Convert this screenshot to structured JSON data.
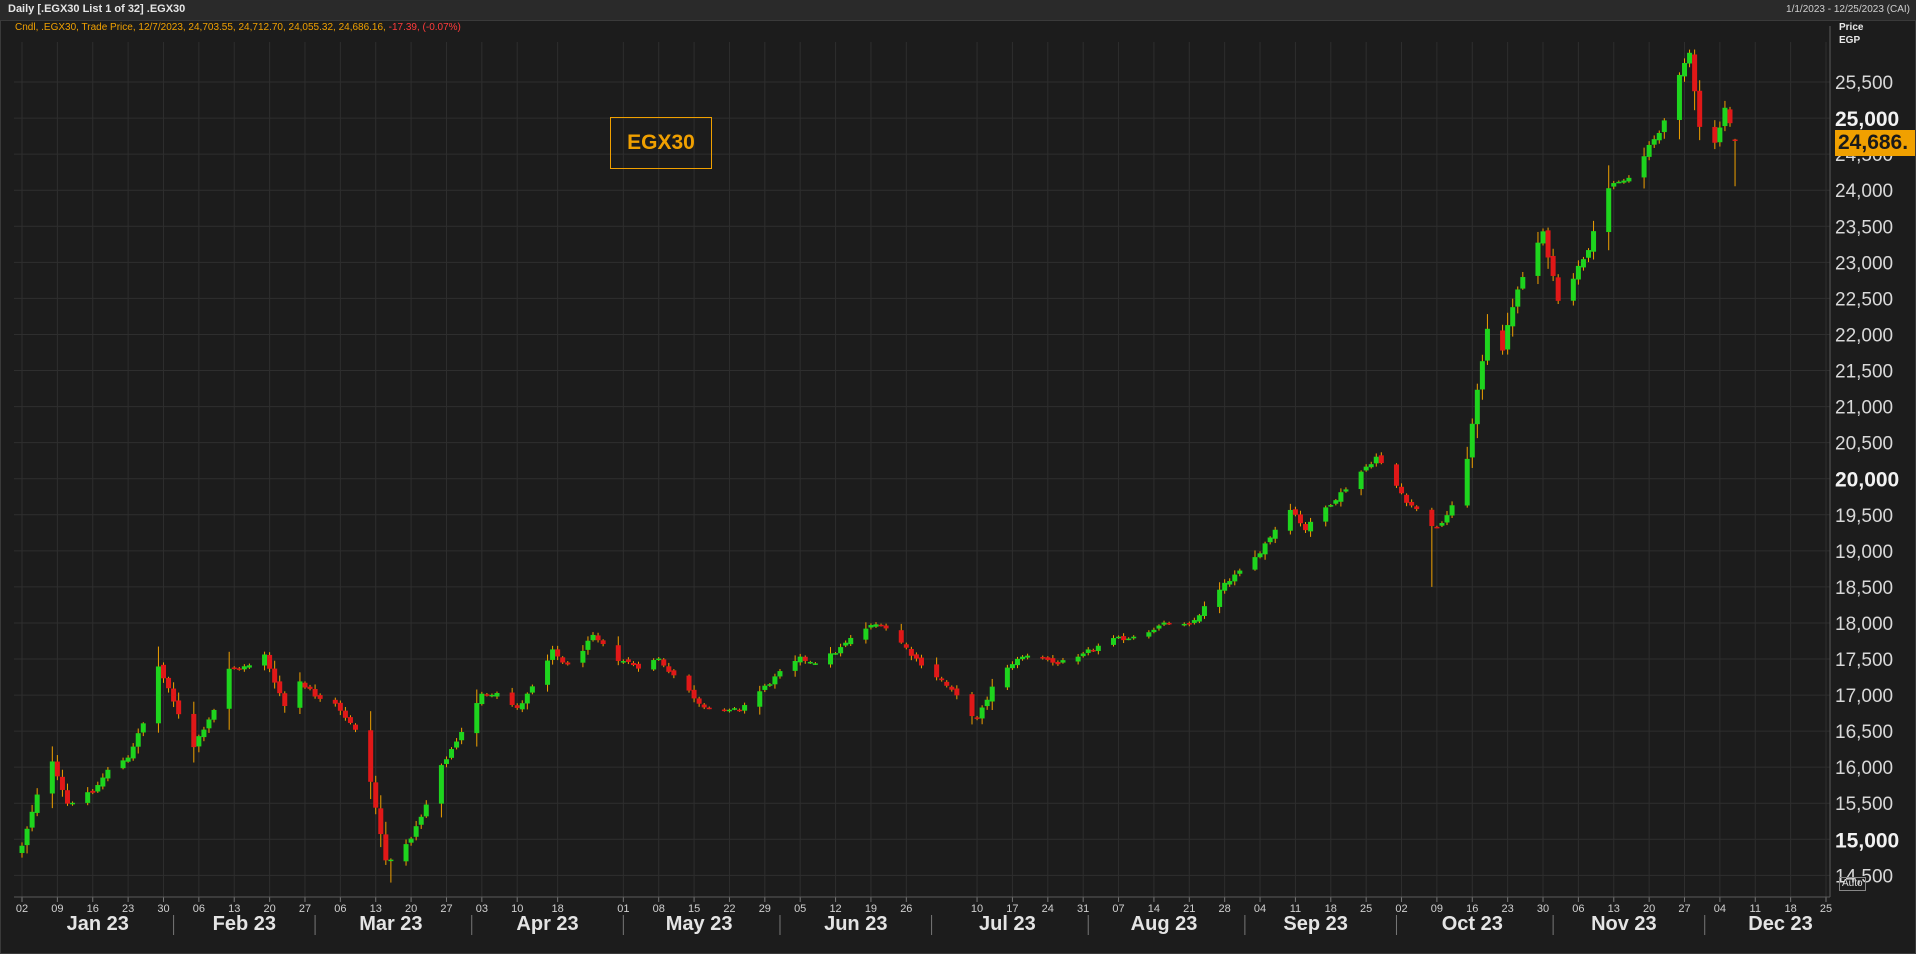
{
  "window": {
    "title": "Daily [.EGX30 List 1 of 32] .EGX30",
    "date_range": "1/1/2023 - 12/25/2023 (CAI)"
  },
  "legend": {
    "main": "Cndl, .EGX30, Trade Price, 12/7/2023, 24,703.55, 24,712.70, 24,055.32, 24,686.16,",
    "change": " -17.39, (-0.07%)"
  },
  "price_header": {
    "line1": "Price",
    "line2": "EGP"
  },
  "last_price_label": "24,686.",
  "annotation": "EGX30",
  "auto_label": "Auto",
  "colors": {
    "up": "#1ed41e",
    "down": "#e01818",
    "accent": "#f0a000",
    "grid": "#2e2e2e",
    "background": "#1c1c1c"
  },
  "chart_data": {
    "type": "candlestick",
    "instrument": ".EGX30",
    "currency": "EGP",
    "ylim": [
      14200,
      26000
    ],
    "ytick_labels": [
      "14,500",
      "15,000",
      "15,500",
      "16,000",
      "16,500",
      "17,000",
      "17,500",
      "18,000",
      "18,500",
      "19,000",
      "19,500",
      "20,000",
      "20,500",
      "21,000",
      "21,500",
      "22,000",
      "22,500",
      "23,000",
      "23,500",
      "24,000",
      "24,500",
      "25,000",
      "25,500"
    ],
    "ytick_values": [
      14500,
      15000,
      15500,
      16000,
      16500,
      17000,
      17500,
      18000,
      18500,
      19000,
      19500,
      20000,
      20500,
      21000,
      21500,
      22000,
      22500,
      23000,
      23500,
      24000,
      24500,
      25000,
      25500
    ],
    "ytick_major": [
      15000,
      20000,
      25000
    ],
    "xlim": [
      "2023-01-02",
      "2023-12-25"
    ],
    "day_ticks": [
      {
        "label": "02",
        "date": "2023-01-02"
      },
      {
        "label": "09",
        "date": "2023-01-09"
      },
      {
        "label": "16",
        "date": "2023-01-16"
      },
      {
        "label": "23",
        "date": "2023-01-23"
      },
      {
        "label": "30",
        "date": "2023-01-30"
      },
      {
        "label": "06",
        "date": "2023-02-06"
      },
      {
        "label": "13",
        "date": "2023-02-13"
      },
      {
        "label": "20",
        "date": "2023-02-20"
      },
      {
        "label": "27",
        "date": "2023-02-27"
      },
      {
        "label": "06",
        "date": "2023-03-06"
      },
      {
        "label": "13",
        "date": "2023-03-13"
      },
      {
        "label": "20",
        "date": "2023-03-20"
      },
      {
        "label": "27",
        "date": "2023-03-27"
      },
      {
        "label": "03",
        "date": "2023-04-03"
      },
      {
        "label": "10",
        "date": "2023-04-10"
      },
      {
        "label": "18",
        "date": "2023-04-18"
      },
      {
        "label": "01",
        "date": "2023-05-01"
      },
      {
        "label": "08",
        "date": "2023-05-08"
      },
      {
        "label": "15",
        "date": "2023-05-15"
      },
      {
        "label": "22",
        "date": "2023-05-22"
      },
      {
        "label": "29",
        "date": "2023-05-29"
      },
      {
        "label": "05",
        "date": "2023-06-05"
      },
      {
        "label": "12",
        "date": "2023-06-12"
      },
      {
        "label": "19",
        "date": "2023-06-19"
      },
      {
        "label": "26",
        "date": "2023-06-26"
      },
      {
        "label": "10",
        "date": "2023-07-10"
      },
      {
        "label": "17",
        "date": "2023-07-17"
      },
      {
        "label": "24",
        "date": "2023-07-24"
      },
      {
        "label": "31",
        "date": "2023-07-31"
      },
      {
        "label": "07",
        "date": "2023-08-07"
      },
      {
        "label": "14",
        "date": "2023-08-14"
      },
      {
        "label": "21",
        "date": "2023-08-21"
      },
      {
        "label": "28",
        "date": "2023-08-28"
      },
      {
        "label": "04",
        "date": "2023-09-04"
      },
      {
        "label": "11",
        "date": "2023-09-11"
      },
      {
        "label": "18",
        "date": "2023-09-18"
      },
      {
        "label": "25",
        "date": "2023-09-25"
      },
      {
        "label": "02",
        "date": "2023-10-02"
      },
      {
        "label": "09",
        "date": "2023-10-09"
      },
      {
        "label": "16",
        "date": "2023-10-16"
      },
      {
        "label": "23",
        "date": "2023-10-23"
      },
      {
        "label": "30",
        "date": "2023-10-30"
      },
      {
        "label": "06",
        "date": "2023-11-06"
      },
      {
        "label": "13",
        "date": "2023-11-13"
      },
      {
        "label": "20",
        "date": "2023-11-20"
      },
      {
        "label": "27",
        "date": "2023-11-27"
      },
      {
        "label": "04",
        "date": "2023-12-04"
      },
      {
        "label": "11",
        "date": "2023-12-11"
      },
      {
        "label": "18",
        "date": "2023-12-18"
      },
      {
        "label": "25",
        "date": "2023-12-25"
      }
    ],
    "month_labels": [
      {
        "label": "Jan 23",
        "date": "2023-01-17"
      },
      {
        "label": "Feb 23",
        "date": "2023-02-15"
      },
      {
        "label": "Mar 23",
        "date": "2023-03-16"
      },
      {
        "label": "Apr 23",
        "date": "2023-04-16"
      },
      {
        "label": "May 23",
        "date": "2023-05-16"
      },
      {
        "label": "Jun 23",
        "date": "2023-06-16"
      },
      {
        "label": "Jul 23",
        "date": "2023-07-16"
      },
      {
        "label": "Aug 23",
        "date": "2023-08-16"
      },
      {
        "label": "Sep 23",
        "date": "2023-09-15"
      },
      {
        "label": "Oct 23",
        "date": "2023-10-16"
      },
      {
        "label": "Nov 23",
        "date": "2023-11-15"
      },
      {
        "label": "Dec 23",
        "date": "2023-12-16"
      }
    ],
    "month_separators": [
      "2023-02-01",
      "2023-03-01",
      "2023-04-01",
      "2023-05-01",
      "2023-06-01",
      "2023-07-01",
      "2023-08-01",
      "2023-09-01",
      "2023-10-01",
      "2023-11-01",
      "2023-12-01"
    ],
    "close_anchors": [
      [
        "2023-01-02",
        14900
      ],
      [
        "2023-01-05",
        15600
      ],
      [
        "2023-01-08",
        16100
      ],
      [
        "2023-01-11",
        15500
      ],
      [
        "2023-01-16",
        15650
      ],
      [
        "2023-01-19",
        15950
      ],
      [
        "2023-01-23",
        16150
      ],
      [
        "2023-01-26",
        16600
      ],
      [
        "2023-01-29",
        17400
      ],
      [
        "2023-02-01",
        16900
      ],
      [
        "2023-02-05",
        16300
      ],
      [
        "2023-02-09",
        16800
      ],
      [
        "2023-02-12",
        17350
      ],
      [
        "2023-02-16",
        17400
      ],
      [
        "2023-02-19",
        17550
      ],
      [
        "2023-02-23",
        16850
      ],
      [
        "2023-02-26",
        17200
      ],
      [
        "2023-03-01",
        17000
      ],
      [
        "2023-03-05",
        16900
      ],
      [
        "2023-03-09",
        16500
      ],
      [
        "2023-03-12",
        15800
      ],
      [
        "2023-03-15",
        14700
      ],
      [
        "2023-03-19",
        14900
      ],
      [
        "2023-03-22",
        15300
      ],
      [
        "2023-03-26",
        16000
      ],
      [
        "2023-03-30",
        16500
      ],
      [
        "2023-04-03",
        17000
      ],
      [
        "2023-04-06",
        17050
      ],
      [
        "2023-04-10",
        16800
      ],
      [
        "2023-04-14",
        17200
      ],
      [
        "2023-04-17",
        17600
      ],
      [
        "2023-04-20",
        17400
      ],
      [
        "2023-04-25",
        17800
      ],
      [
        "2023-04-30",
        17500
      ],
      [
        "2023-05-04",
        17400
      ],
      [
        "2023-05-08",
        17500
      ],
      [
        "2023-05-12",
        17200
      ],
      [
        "2023-05-16",
        16900
      ],
      [
        "2023-05-20",
        16750
      ],
      [
        "2023-05-24",
        16800
      ],
      [
        "2023-05-28",
        17050
      ],
      [
        "2023-06-01",
        17300
      ],
      [
        "2023-06-05",
        17500
      ],
      [
        "2023-06-09",
        17450
      ],
      [
        "2023-06-13",
        17650
      ],
      [
        "2023-06-17",
        17900
      ],
      [
        "2023-06-21",
        18000
      ],
      [
        "2023-06-24",
        17800
      ],
      [
        "2023-06-28",
        17500
      ],
      [
        "2023-07-03",
        17200
      ],
      [
        "2023-07-07",
        16900
      ],
      [
        "2023-07-10",
        16650
      ],
      [
        "2023-07-13",
        17100
      ],
      [
        "2023-07-17",
        17450
      ],
      [
        "2023-07-21",
        17600
      ],
      [
        "2023-07-25",
        17450
      ],
      [
        "2023-07-29",
        17450
      ],
      [
        "2023-08-01",
        17600
      ],
      [
        "2023-08-05",
        17750
      ],
      [
        "2023-08-09",
        17800
      ],
      [
        "2023-08-13",
        17900
      ],
      [
        "2023-08-17",
        18000
      ],
      [
        "2023-08-21",
        17950
      ],
      [
        "2023-08-25",
        18300
      ],
      [
        "2023-08-29",
        18600
      ],
      [
        "2023-09-02",
        18800
      ],
      [
        "2023-09-06",
        19200
      ],
      [
        "2023-09-10",
        19600
      ],
      [
        "2023-09-13",
        19300
      ],
      [
        "2023-09-17",
        19600
      ],
      [
        "2023-09-20",
        19800
      ],
      [
        "2023-09-24",
        20100
      ],
      [
        "2023-09-27",
        20300
      ],
      [
        "2023-09-30",
        20000
      ],
      [
        "2023-10-03",
        19700
      ],
      [
        "2023-10-06",
        19500
      ],
      [
        "2023-10-09",
        19300
      ],
      [
        "2023-10-12",
        19600
      ],
      [
        "2023-10-15",
        20300
      ],
      [
        "2023-10-17",
        21200
      ],
      [
        "2023-10-19",
        22100
      ],
      [
        "2023-10-22",
        21800
      ],
      [
        "2023-10-24",
        22400
      ],
      [
        "2023-10-27",
        23000
      ],
      [
        "2023-10-30",
        23400
      ],
      [
        "2023-11-02",
        22500
      ],
      [
        "2023-11-05",
        22800
      ],
      [
        "2023-11-08",
        23200
      ],
      [
        "2023-11-11",
        24000
      ],
      [
        "2023-11-14",
        24100
      ],
      [
        "2023-11-17",
        24200
      ],
      [
        "2023-11-20",
        24600
      ],
      [
        "2023-11-22",
        24800
      ],
      [
        "2023-11-25",
        25400
      ],
      [
        "2023-11-28",
        25900
      ],
      [
        "2023-11-30",
        24900
      ],
      [
        "2023-12-03",
        24650
      ],
      [
        "2023-12-05",
        25150
      ],
      [
        "2023-12-07",
        24686.16
      ]
    ],
    "last_candle": {
      "date": "2023-12-07",
      "open": 24703.55,
      "high": 24712.7,
      "low": 24055.32,
      "close": 24686.16,
      "change": -17.39,
      "change_pct": -0.07
    },
    "notable_wicks": [
      {
        "date": "2023-03-16",
        "low": 14400
      },
      {
        "date": "2023-10-08",
        "low": 18500
      },
      {
        "date": "2023-11-28",
        "high": 25950
      }
    ]
  }
}
